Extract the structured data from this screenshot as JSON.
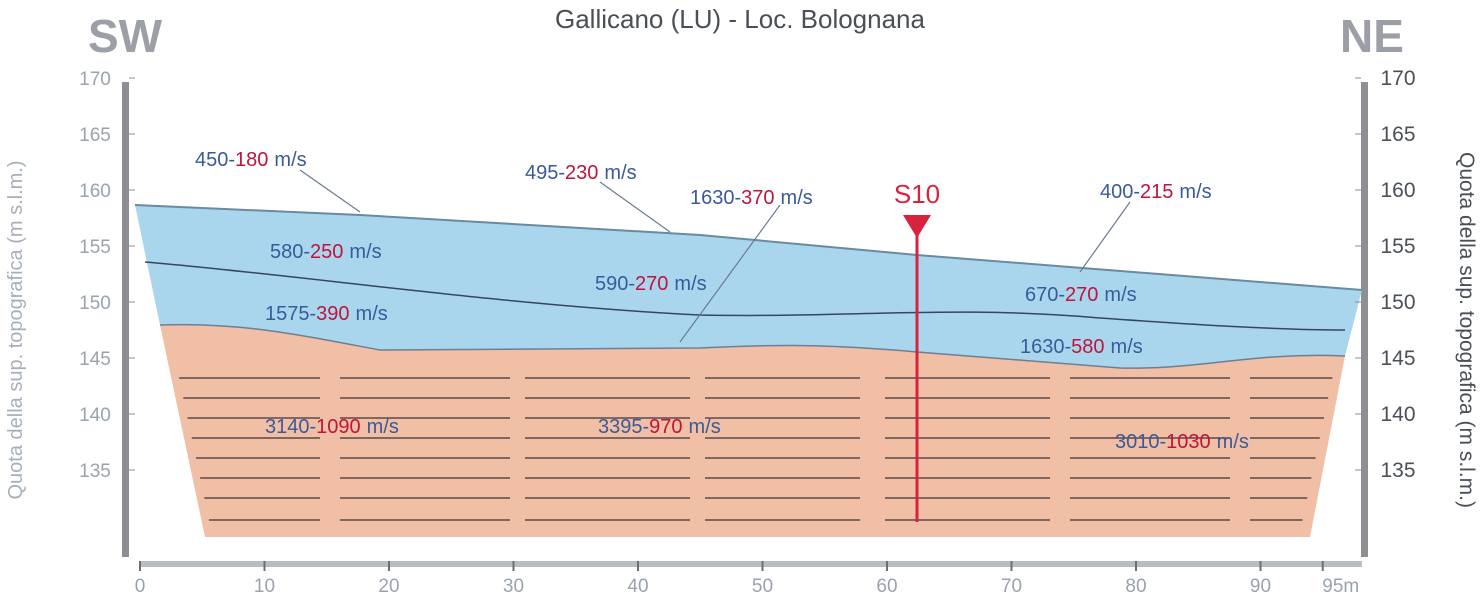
{
  "title": "Gallicano (LU) - Loc. Bolognana",
  "orientation": {
    "left": "SW",
    "right": "NE"
  },
  "axis": {
    "left_title": "Quota della sup. topografica (m s.l.m.)",
    "right_title": "Quota della sup. topografica (m s.l.m.)",
    "yticks": [
      135,
      140,
      145,
      150,
      155,
      160,
      165,
      170
    ],
    "xticks": [
      0,
      10,
      20,
      30,
      40,
      50,
      60,
      70,
      80,
      90,
      {
        "value": 95,
        "label": "95m"
      }
    ]
  },
  "borehole": {
    "label": "S10"
  },
  "layers": [
    {
      "vp": "450-",
      "vs": "180",
      "unit": "m/s"
    },
    {
      "vp": "495-",
      "vs": "230",
      "unit": "m/s"
    },
    {
      "vp": "1630-",
      "vs": "370",
      "unit": "m/s"
    },
    {
      "vp": "400-",
      "vs": "215",
      "unit": "m/s"
    },
    {
      "vp": "580-",
      "vs": "250",
      "unit": "m/s"
    },
    {
      "vp": "590-",
      "vs": "270",
      "unit": "m/s"
    },
    {
      "vp": "670-",
      "vs": "270",
      "unit": "m/s"
    },
    {
      "vp": "1575-",
      "vs": "390",
      "unit": "m/s"
    },
    {
      "vp": "1630-",
      "vs": "580",
      "unit": "m/s"
    },
    {
      "vp": "3140-",
      "vs": "1090",
      "unit": "m/s"
    },
    {
      "vp": "3395-",
      "vs": "970",
      "unit": "m/s"
    },
    {
      "vp": "3010-",
      "vs": "1030",
      "unit": "m/s"
    }
  ]
}
